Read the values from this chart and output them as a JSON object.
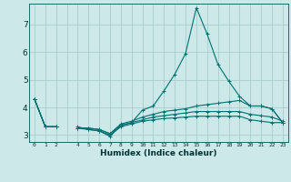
{
  "xlabel": "Humidex (Indice chaleur)",
  "background_color": "#cce8e8",
  "grid_color": "#aacccc",
  "line_color": "#007070",
  "xlim": [
    -0.5,
    23.5
  ],
  "ylim": [
    2.75,
    7.75
  ],
  "yticks": [
    3,
    4,
    5,
    6,
    7
  ],
  "series": [
    [
      4.3,
      3.3,
      3.3,
      null,
      3.3,
      3.2,
      3.15,
      2.95,
      3.35,
      3.45,
      3.9,
      4.05,
      4.6,
      5.2,
      5.95,
      7.6,
      6.65,
      5.55,
      4.95,
      4.4,
      4.05,
      4.05,
      3.95,
      3.45
    ],
    [
      4.3,
      3.3,
      3.3,
      null,
      3.25,
      3.25,
      3.2,
      3.05,
      3.4,
      3.5,
      3.65,
      3.75,
      3.85,
      3.9,
      3.95,
      4.05,
      4.1,
      4.15,
      4.2,
      4.25,
      4.05,
      4.05,
      3.95,
      3.45
    ],
    [
      4.3,
      3.3,
      3.3,
      null,
      3.25,
      3.25,
      3.2,
      3.05,
      3.35,
      3.45,
      3.55,
      3.65,
      3.7,
      3.75,
      3.8,
      3.85,
      3.85,
      3.85,
      3.85,
      3.85,
      3.75,
      3.7,
      3.65,
      3.5
    ],
    [
      4.3,
      3.3,
      3.3,
      null,
      3.25,
      3.2,
      3.15,
      3.0,
      3.3,
      3.4,
      3.5,
      3.55,
      3.6,
      3.62,
      3.65,
      3.68,
      3.68,
      3.68,
      3.68,
      3.68,
      3.55,
      3.5,
      3.45,
      3.45
    ]
  ]
}
